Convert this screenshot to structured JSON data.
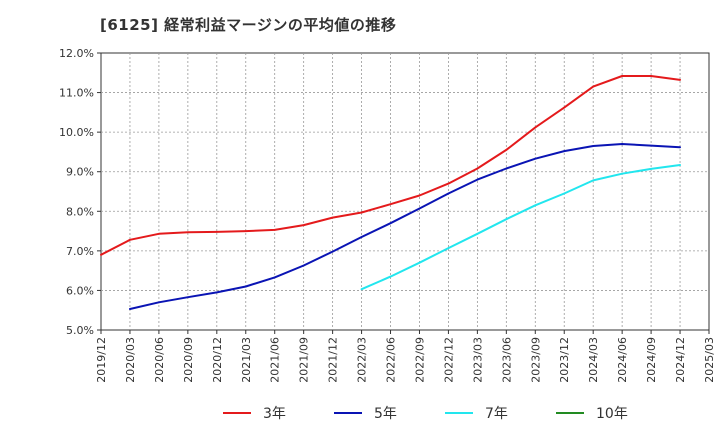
{
  "chart_data": {
    "type": "line",
    "title": "[6125]  経常利益マージンの平均値の推移",
    "xlabel": "",
    "ylabel": "",
    "ylim": [
      5.0,
      12.0
    ],
    "yticks": [
      "5.0%",
      "6.0%",
      "7.0%",
      "8.0%",
      "9.0%",
      "10.0%",
      "11.0%",
      "12.0%"
    ],
    "ytick_values": [
      5,
      6,
      7,
      8,
      9,
      10,
      11,
      12
    ],
    "xticks": [
      "2019/12",
      "2020/03",
      "2020/06",
      "2020/09",
      "2020/12",
      "2021/03",
      "2021/06",
      "2021/09",
      "2021/12",
      "2022/03",
      "2022/06",
      "2022/09",
      "2022/12",
      "2023/03",
      "2023/06",
      "2023/09",
      "2023/12",
      "2024/03",
      "2024/06",
      "2024/09",
      "2024/12",
      "2025/03"
    ],
    "grid": true,
    "legend_position": "bottom",
    "series": [
      {
        "name": "3年",
        "color": "#e41a1c",
        "x": [
          "2019/12",
          "2020/03",
          "2020/06",
          "2020/09",
          "2020/12",
          "2021/03",
          "2021/06",
          "2021/09",
          "2021/12",
          "2022/03",
          "2022/06",
          "2022/09",
          "2022/12",
          "2023/03",
          "2023/06",
          "2023/09",
          "2023/12",
          "2024/03",
          "2024/06",
          "2024/09",
          "2024/12"
        ],
        "values": [
          6.9,
          7.28,
          7.43,
          7.47,
          7.48,
          7.5,
          7.53,
          7.65,
          7.84,
          7.97,
          8.18,
          8.4,
          8.7,
          9.08,
          9.55,
          10.12,
          10.62,
          11.15,
          11.42,
          11.42,
          11.32
        ]
      },
      {
        "name": "5年",
        "color": "#0a14b4",
        "x": [
          "2020/03",
          "2020/06",
          "2020/09",
          "2020/12",
          "2021/03",
          "2021/06",
          "2021/09",
          "2021/12",
          "2022/03",
          "2022/06",
          "2022/09",
          "2022/12",
          "2023/03",
          "2023/06",
          "2023/09",
          "2023/12",
          "2024/03",
          "2024/06",
          "2024/09",
          "2024/12"
        ],
        "values": [
          5.53,
          5.7,
          5.83,
          5.95,
          6.1,
          6.33,
          6.63,
          6.98,
          7.35,
          7.7,
          8.07,
          8.45,
          8.8,
          9.08,
          9.33,
          9.52,
          9.65,
          9.7,
          9.66,
          9.62
        ]
      },
      {
        "name": "7年",
        "color": "#22e6ee",
        "x": [
          "2022/03",
          "2022/06",
          "2022/09",
          "2022/12",
          "2023/03",
          "2023/06",
          "2023/09",
          "2023/12",
          "2024/03",
          "2024/06",
          "2024/09",
          "2024/12"
        ],
        "values": [
          6.03,
          6.35,
          6.7,
          7.07,
          7.43,
          7.8,
          8.15,
          8.45,
          8.78,
          8.95,
          9.07,
          9.17
        ]
      },
      {
        "name": "10年",
        "color": "#228b22",
        "x": [],
        "values": []
      }
    ]
  }
}
